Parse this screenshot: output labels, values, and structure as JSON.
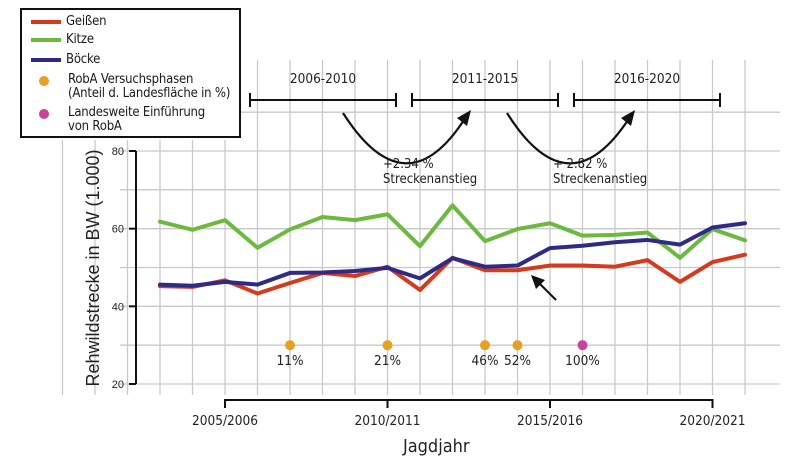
{
  "chart_data": {
    "type": "line",
    "title": "",
    "xlabel": "Jagdjahr",
    "ylabel": "Rehwildstrecke in BW (1.000)",
    "ylim": [
      20,
      80
    ],
    "yticks": [
      20,
      40,
      60,
      80
    ],
    "grid": true,
    "legend_position": "top-left",
    "x": [
      "2003/2004",
      "2004/2005",
      "2005/2006",
      "2006/2007",
      "2007/2008",
      "2008/2009",
      "2009/2010",
      "2010/2011",
      "2011/2012",
      "2012/2013",
      "2013/2014",
      "2014/2015",
      "2015/2016",
      "2016/2017",
      "2017/2018",
      "2018/2019",
      "2019/2020",
      "2020/2021",
      "2021/2022"
    ],
    "xtick_labels": [
      "2005/2006",
      "2010/2011",
      "2015/2016",
      "2020/2021"
    ],
    "values_note": "Line values estimated by eye from gridlines; approximately +/-1 unit.",
    "series": [
      {
        "name": "Geißen",
        "color": "#d43a1e",
        "values": [
          45.2,
          45.0,
          46.7,
          43.3,
          46.0,
          48.6,
          47.8,
          50.2,
          44.2,
          52.5,
          49.3,
          49.3,
          50.5,
          50.5,
          50.2,
          51.9,
          46.3,
          51.4,
          53.3
        ]
      },
      {
        "name": "Kitze",
        "color": "#6db83f",
        "values": [
          61.8,
          59.7,
          62.2,
          55.1,
          59.8,
          63.0,
          62.2,
          63.7,
          55.5,
          66.0,
          56.8,
          59.9,
          61.4,
          58.2,
          58.4,
          59.0,
          52.5,
          59.9,
          57.0
        ]
      },
      {
        "name": "Böcke",
        "color": "#2e2a85",
        "values": [
          45.6,
          45.3,
          46.3,
          45.6,
          48.6,
          48.7,
          49.1,
          49.9,
          47.2,
          52.4,
          50.2,
          50.5,
          55.0,
          55.6,
          56.5,
          57.1,
          55.9,
          60.3,
          61.4
        ]
      }
    ],
    "markers": [
      {
        "x_index": 4,
        "y": 30,
        "label": "11%",
        "type": "RobA Versuchsphasen",
        "color": "#e8a020"
      },
      {
        "x_index": 7,
        "y": 30,
        "label": "21%",
        "type": "RobA Versuchsphasen",
        "color": "#e8a020"
      },
      {
        "x_index": 10,
        "y": 30,
        "label": "46%",
        "type": "RobA Versuchsphasen",
        "color": "#e8a020"
      },
      {
        "x_index": 11,
        "y": 30,
        "label": "52%",
        "type": "RobA Versuchsphasen",
        "color": "#e8a020"
      },
      {
        "x_index": 13,
        "y": 30,
        "label": "100%",
        "type": "Landesweite Einführung von RobA",
        "color": "#c8439a"
      }
    ],
    "periods": [
      {
        "label": "2006-2010"
      },
      {
        "label": "2011-2015"
      },
      {
        "label": "2016-2020"
      }
    ],
    "annotations": [
      {
        "line1": "+2.34 %",
        "line2": "Streckenanstieg"
      },
      {
        "line1": "+ 2.82 %",
        "line2": "Streckenanstieg"
      }
    ],
    "legend": [
      {
        "kind": "line",
        "label": "Geißen",
        "color": "#d43a1e"
      },
      {
        "kind": "line",
        "label": "Kitze",
        "color": "#6db83f"
      },
      {
        "kind": "line",
        "label": "Böcke",
        "color": "#2e2a85"
      },
      {
        "kind": "dot",
        "label": "RobA Versuchsphasen\n(Anteil d. Landesfläche in %)",
        "color": "#e8a020"
      },
      {
        "kind": "dot",
        "label": "Landesweite Einführung\nvon RobA",
        "color": "#c8439a"
      }
    ]
  }
}
